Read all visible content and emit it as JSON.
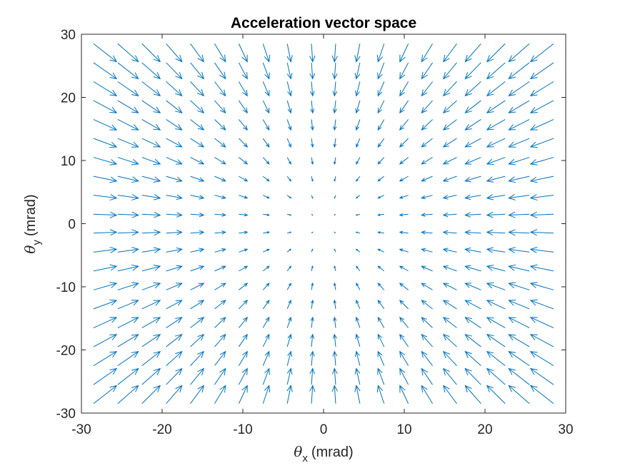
{
  "chart_data": {
    "type": "quiver",
    "title": "Acceleration vector space",
    "xlabel": {
      "symbol": "θ",
      "subscript": "x",
      "unit": "(mrad)"
    },
    "ylabel": {
      "symbol": "θ",
      "subscript": "y",
      "unit": "(mrad)"
    },
    "xlim": [
      -30,
      30
    ],
    "ylim": [
      -30,
      30
    ],
    "xticks": [
      -30,
      -20,
      -10,
      0,
      10,
      20,
      30
    ],
    "yticks": [
      -30,
      -20,
      -10,
      0,
      10,
      20,
      30
    ],
    "grid": false,
    "box": true,
    "vector_field": {
      "description": "Radial field pointing toward origin, magnitude proportional to distance from origin",
      "grid_x": [
        -28.5,
        -25.5,
        -22.5,
        -19.5,
        -16.5,
        -13.5,
        -10.5,
        -7.5,
        -4.5,
        -1.5,
        1.5,
        4.5,
        7.5,
        10.5,
        13.5,
        16.5,
        19.5,
        22.5,
        25.5,
        28.5
      ],
      "grid_y": [
        -28.5,
        -25.5,
        -22.5,
        -19.5,
        -16.5,
        -13.5,
        -10.5,
        -7.5,
        -4.5,
        -1.5,
        1.5,
        4.5,
        7.5,
        10.5,
        13.5,
        16.5,
        19.5,
        22.5,
        25.5,
        28.5
      ],
      "u_equals": "-x",
      "v_equals": "-y",
      "arrow_color": "#0072BD"
    }
  },
  "colors": {
    "arrow": "#0072BD",
    "axes": "#262626",
    "background": "#ffffff"
  }
}
